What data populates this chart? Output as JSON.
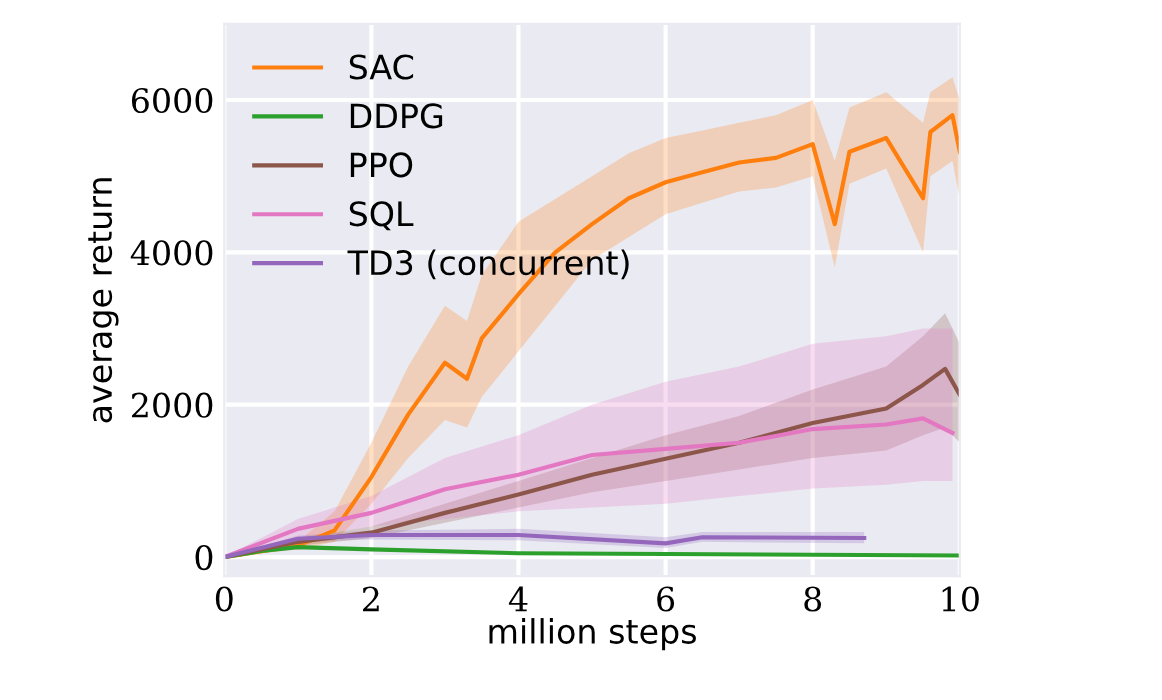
{
  "chart_data": {
    "type": "line",
    "xlabel": "million steps",
    "ylabel": "average return",
    "xlim": [
      0,
      10
    ],
    "ylim": [
      -250,
      7000
    ],
    "xticks": [
      0,
      2,
      4,
      6,
      8,
      10
    ],
    "yticks": [
      0,
      2000,
      4000,
      6000
    ],
    "grid": true,
    "legend": "top left",
    "line_style": "solid",
    "marker": "none",
    "series": [
      {
        "name": "SAC",
        "color": "#ff7f0e",
        "x": [
          0,
          1,
          1.5,
          2,
          2.5,
          3,
          3.3,
          3.5,
          4,
          4.5,
          5,
          5.5,
          6,
          6.5,
          7,
          7.5,
          8,
          8.3,
          8.5,
          9,
          9.5,
          9.6,
          9.9,
          10
        ],
        "values": [
          0,
          150,
          350,
          1050,
          1870,
          2550,
          2340,
          2870,
          3450,
          4000,
          4370,
          4710,
          4920,
          5050,
          5180,
          5240,
          5420,
          4370,
          5320,
          5500,
          4710,
          5580,
          5800,
          5320
        ],
        "lower": [
          0,
          100,
          200,
          700,
          1300,
          1800,
          1700,
          2100,
          2700,
          3300,
          3900,
          4200,
          4500,
          4650,
          4800,
          4850,
          5000,
          3800,
          4900,
          5100,
          4000,
          5000,
          5200,
          4700
        ],
        "upper": [
          0,
          200,
          600,
          1500,
          2500,
          3300,
          3100,
          3700,
          4400,
          4700,
          5000,
          5300,
          5500,
          5600,
          5700,
          5800,
          6000,
          5200,
          5900,
          6100,
          5700,
          6100,
          6300,
          6000
        ]
      },
      {
        "name": "DDPG",
        "color": "#2ca02c",
        "x": [
          0,
          0.5,
          1,
          2,
          4,
          6,
          8,
          10
        ],
        "values": [
          0,
          80,
          130,
          100,
          50,
          40,
          30,
          20
        ]
      },
      {
        "name": "PPO",
        "color": "#8c564b",
        "x": [
          0,
          1,
          2,
          3,
          4,
          5,
          6,
          7,
          8,
          9,
          9.5,
          9.8,
          10
        ],
        "values": [
          0,
          200,
          320,
          580,
          820,
          1080,
          1290,
          1500,
          1760,
          1950,
          2260,
          2470,
          2130
        ],
        "lower": [
          0,
          150,
          250,
          450,
          650,
          850,
          1000,
          1150,
          1300,
          1400,
          1600,
          1700,
          1500
        ],
        "upper": [
          0,
          250,
          400,
          700,
          1000,
          1300,
          1600,
          1850,
          2200,
          2500,
          2900,
          3200,
          2800
        ]
      },
      {
        "name": "SQL",
        "color": "#e377c2",
        "x": [
          0,
          1,
          2,
          3,
          4,
          5,
          6,
          7,
          8,
          9,
          9.5,
          9.9
        ],
        "values": [
          0,
          370,
          580,
          890,
          1080,
          1340,
          1420,
          1500,
          1680,
          1740,
          1820,
          1630
        ],
        "lower": [
          0,
          250,
          400,
          500,
          600,
          650,
          700,
          800,
          900,
          950,
          1000,
          1000
        ],
        "upper": [
          0,
          500,
          800,
          1300,
          1600,
          2000,
          2300,
          2500,
          2800,
          2900,
          3000,
          3000
        ]
      },
      {
        "name": "TD3 (concurrent)",
        "color": "#9467bd",
        "x": [
          0,
          1,
          2,
          4,
          6,
          6.5,
          8.7
        ],
        "values": [
          0,
          240,
          290,
          290,
          180,
          260,
          250
        ],
        "lower": [
          0,
          200,
          230,
          220,
          120,
          200,
          180
        ],
        "upper": [
          0,
          280,
          350,
          370,
          260,
          330,
          330
        ]
      }
    ]
  }
}
